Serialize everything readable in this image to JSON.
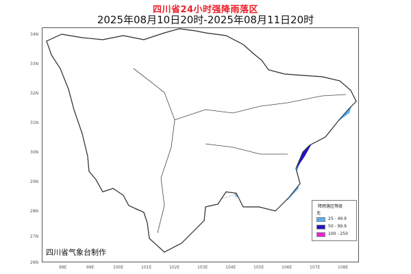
{
  "title": "四川省24小时强降雨落区",
  "subtitle": "2025年08月10日20时-2025年08月11日20时",
  "credit": "四川省气象台制作",
  "lat_labels": [
    "34N",
    "33N",
    "32N",
    "31N",
    "30N",
    "29N",
    "28N",
    "27N",
    "26N"
  ],
  "lon_labels": [
    "98E",
    "99E",
    "100E",
    "101E",
    "102E",
    "103E",
    "104E",
    "105E",
    "106E",
    "107E",
    "108E"
  ],
  "legend": {
    "title": "降雨落区等级",
    "items": [
      {
        "label": "无",
        "color": "#ffffff"
      },
      {
        "label": "25 - 49.9",
        "color": "#5aaef0"
      },
      {
        "label": "50 - 99.9",
        "color": "#2212c8"
      },
      {
        "label": "100 - 250",
        "color": "#f020d8"
      }
    ]
  },
  "colors": {
    "level1": "#5aaef0",
    "level2": "#2212c8",
    "level3": "#f020d8",
    "province_border": "#333333",
    "county_border": "#9a9a9a"
  }
}
